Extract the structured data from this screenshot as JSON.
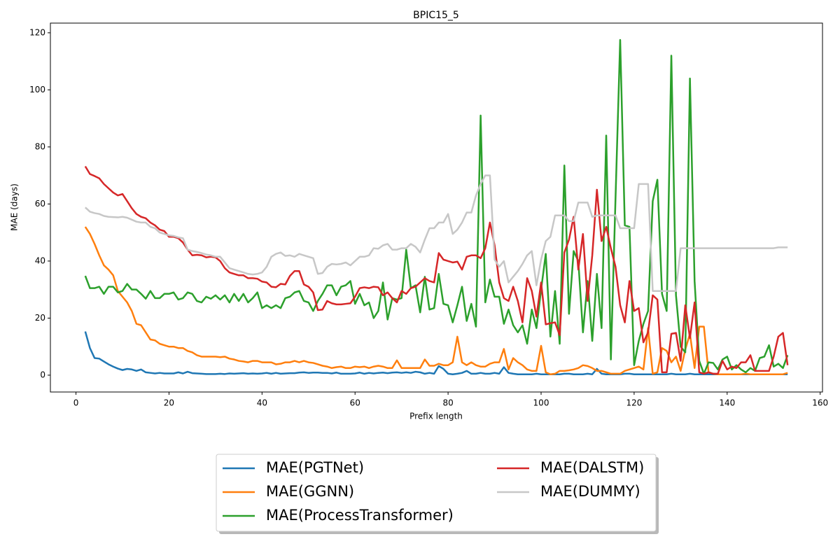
{
  "chart_data": {
    "type": "line",
    "title": "BPIC15_5",
    "xlabel": "Prefix length",
    "ylabel": "MAE (days)",
    "x": [
      2,
      3,
      4,
      5,
      6,
      7,
      8,
      9,
      10,
      11,
      12,
      13,
      14,
      15,
      16,
      17,
      18,
      19,
      20,
      21,
      22,
      23,
      24,
      25,
      26,
      27,
      28,
      29,
      30,
      31,
      32,
      33,
      34,
      35,
      36,
      37,
      38,
      39,
      40,
      41,
      42,
      43,
      44,
      45,
      46,
      47,
      48,
      49,
      50,
      51,
      52,
      53,
      54,
      55,
      56,
      57,
      58,
      59,
      60,
      61,
      62,
      63,
      64,
      65,
      66,
      67,
      68,
      69,
      70,
      71,
      72,
      73,
      74,
      75,
      76,
      77,
      78,
      79,
      80,
      81,
      82,
      83,
      84,
      85,
      86,
      87,
      88,
      89,
      90,
      91,
      92,
      93,
      94,
      95,
      96,
      97,
      98,
      99,
      100,
      101,
      102,
      103,
      104,
      105,
      106,
      107,
      108,
      109,
      110,
      111,
      112,
      113,
      114,
      115,
      116,
      117,
      118,
      119,
      120,
      121,
      122,
      123,
      124,
      125,
      126,
      127,
      128,
      129,
      130,
      131,
      132,
      133,
      134,
      135,
      136,
      137,
      138,
      139,
      140,
      141,
      142,
      143,
      144,
      145,
      146,
      147,
      148,
      149,
      150,
      151,
      152,
      153
    ],
    "series": [
      {
        "name": "MAE(PGTNet)",
        "color": "#1f77b4",
        "values": [
          15.3,
          9.5,
          6,
          5.8,
          4.8,
          3.8,
          3,
          2.3,
          1.8,
          2.2,
          2,
          1.5,
          2,
          1,
          0.8,
          0.6,
          0.8,
          0.6,
          0.6,
          0.6,
          1,
          0.6,
          1.2,
          0.7,
          0.6,
          0.5,
          0.4,
          0.4,
          0.4,
          0.5,
          0.4,
          0.6,
          0.5,
          0.6,
          0.7,
          0.5,
          0.6,
          0.5,
          0.6,
          0.8,
          0.5,
          0.8,
          0.5,
          0.6,
          0.7,
          0.7,
          0.9,
          1,
          0.8,
          0.9,
          0.9,
          0.8,
          0.8,
          0.6,
          0.9,
          0.5,
          0.5,
          0.5,
          0.6,
          0.9,
          0.5,
          0.8,
          0.6,
          0.8,
          0.9,
          0.7,
          0.9,
          1,
          0.8,
          1,
          0.8,
          1.2,
          1,
          0.5,
          0.8,
          0.5,
          3.2,
          2.2,
          0.5,
          0.3,
          0.5,
          0.8,
          1.5,
          0.5,
          0.5,
          0.8,
          0.5,
          0.5,
          0.8,
          0.5,
          2.8,
          0.8,
          0.5,
          0.3,
          0.3,
          0.3,
          0.3,
          0.5,
          0.3,
          0.3,
          0.3,
          0.3,
          0.3,
          0.5,
          0.5,
          0.3,
          0.3,
          0.3,
          0.5,
          0.3,
          2.2,
          0.5,
          0.3,
          0.3,
          0.3,
          0.3,
          0.5,
          0.5,
          0.3,
          0.3,
          0.3,
          0.3,
          0.3,
          0.3,
          0.3,
          0.3,
          0.5,
          0.3,
          0.3,
          0.3,
          0.5,
          0.3,
          0.3,
          0.3,
          0.3,
          0.3,
          0.3,
          0.3,
          0.3,
          0.3,
          0.3,
          0.3,
          0.3,
          0.3,
          0.3,
          0.3,
          0.3,
          0.3,
          0.3,
          0.3,
          0.3,
          0.3
        ]
      },
      {
        "name": "MAE(GGNN)",
        "color": "#ff7f0e",
        "values": [
          52,
          49.5,
          46,
          42,
          38.5,
          37,
          35,
          29.5,
          27.5,
          25.5,
          22.5,
          18,
          17.5,
          15,
          12.5,
          12.2,
          11,
          10.5,
          10,
          10,
          9.5,
          9.5,
          8.5,
          8,
          7,
          6.5,
          6.5,
          6.5,
          6.5,
          6.3,
          6.5,
          5.8,
          5.5,
          5,
          4.8,
          4.5,
          5,
          5,
          4.5,
          4.5,
          4.5,
          3.8,
          4,
          4.5,
          4.5,
          5,
          4.5,
          5,
          4.5,
          4.3,
          3.8,
          3.3,
          3,
          2.5,
          2.8,
          3,
          2.5,
          2.5,
          3,
          2.8,
          3,
          2.5,
          3,
          3.3,
          3,
          2.5,
          2.5,
          5.2,
          2.5,
          2.5,
          2.5,
          2.5,
          2.5,
          5.5,
          3.3,
          3.3,
          4,
          3.5,
          3.5,
          4.5,
          13.5,
          4.5,
          3.5,
          4.5,
          3.5,
          3,
          3,
          4,
          4.5,
          4.5,
          9.2,
          2,
          6,
          4.5,
          3.5,
          2,
          1.5,
          1.5,
          10.3,
          1,
          0.3,
          0.5,
          1.5,
          1.5,
          1.7,
          2,
          2.5,
          3.5,
          3.2,
          2.5,
          1.5,
          1.5,
          1,
          0.5,
          0.5,
          0.5,
          1.5,
          2,
          2.5,
          3,
          2,
          16.5,
          0.5,
          1,
          9.5,
          8.5,
          4.5,
          6.5,
          1.5,
          9,
          14.5,
          2.5,
          17,
          17,
          1,
          0.5,
          0.3,
          0.3,
          0.3,
          0.3,
          0.3,
          0.3,
          0.5,
          0.3,
          0.3,
          0.3,
          0.3,
          0.3,
          0.3,
          0.3,
          0.3,
          0.8
        ]
      },
      {
        "name": "MAE(ProcessTransformer)",
        "color": "#2ca02c",
        "values": [
          34.8,
          30.5,
          30.5,
          31,
          28.5,
          31,
          31,
          29,
          29.5,
          32,
          30,
          30,
          28.5,
          26.8,
          29.5,
          27,
          27,
          28.5,
          28.5,
          29,
          26.5,
          27,
          29,
          28.5,
          26,
          25.5,
          27.5,
          26.8,
          28,
          26.5,
          28,
          25.5,
          28.5,
          26,
          28.5,
          25.5,
          27,
          29,
          23.5,
          24.5,
          23.5,
          24.5,
          23.5,
          27,
          27.5,
          29,
          29.5,
          26,
          25.5,
          22.5,
          26,
          28.5,
          31.5,
          31.5,
          28,
          31,
          31.5,
          33,
          25,
          28.5,
          24.5,
          25.5,
          20,
          22.5,
          32.5,
          19.5,
          27,
          26.5,
          27,
          44,
          30.5,
          31.5,
          22,
          34.5,
          23,
          23.5,
          35.5,
          25,
          24.5,
          18.5,
          24.5,
          31,
          19,
          25,
          17,
          91,
          25.5,
          33.5,
          27.5,
          27.5,
          18,
          23,
          17.5,
          15,
          17.5,
          11,
          23,
          16.5,
          30,
          42.5,
          13.5,
          29.5,
          11,
          73.5,
          21.5,
          43.5,
          40,
          15,
          33,
          12,
          35.5,
          16.5,
          84,
          5.5,
          62,
          117.5,
          52.5,
          52,
          3.5,
          12,
          18,
          22.5,
          61,
          68.5,
          28.5,
          22.5,
          112,
          28,
          10,
          8,
          104,
          33,
          5,
          0.5,
          4.5,
          4.3,
          2,
          5.5,
          6.5,
          2,
          3.5,
          2,
          1,
          2.5,
          1.5,
          6,
          6.5,
          10.5,
          3,
          4,
          2.5,
          7
        ]
      },
      {
        "name": "MAE(DALSTM)",
        "color": "#d62728",
        "values": [
          73.2,
          70.5,
          69.8,
          69,
          67,
          65.5,
          64,
          63,
          63.5,
          61,
          58.5,
          56.5,
          55.5,
          55,
          53.5,
          52.5,
          51,
          50.5,
          48.5,
          48.5,
          48,
          46.5,
          44,
          42,
          42.2,
          42,
          41.3,
          41.5,
          41.3,
          40,
          37.5,
          36,
          35.5,
          35,
          35,
          34,
          34,
          33.8,
          32.8,
          32.5,
          31,
          30.8,
          32,
          31.8,
          34.8,
          36.5,
          36.5,
          31.8,
          31,
          29,
          22.8,
          23,
          26,
          25.2,
          24.8,
          24.8,
          25,
          25.2,
          27.5,
          30.5,
          30.8,
          30.5,
          31,
          30.8,
          28,
          29,
          27,
          25.5,
          29.5,
          28.5,
          30.5,
          31,
          32.5,
          34,
          33,
          32.5,
          42.8,
          40.5,
          40,
          39.5,
          39.8,
          37,
          41.5,
          42,
          42,
          41,
          44.5,
          53.5,
          45.5,
          32.5,
          27,
          26,
          31,
          26,
          18.5,
          34,
          29.5,
          20.5,
          32.5,
          17.8,
          18.2,
          18.5,
          14,
          43,
          47.5,
          55.5,
          37,
          49.5,
          26,
          42,
          65,
          47,
          52,
          44.5,
          38,
          24.5,
          18.5,
          33,
          22.5,
          23.5,
          11.5,
          15,
          28,
          26.5,
          1,
          1,
          14.5,
          14.8,
          5,
          24.5,
          13,
          25.5,
          1,
          0.5,
          1,
          0.5,
          0.5,
          5,
          2,
          3,
          2.5,
          4.5,
          4.5,
          7,
          1.5,
          1.5,
          1.5,
          1.5,
          6.5,
          13.5,
          14.8,
          3.5
        ]
      },
      {
        "name": "MAE(DUMMY)",
        "color": "#c7c7c7",
        "values": [
          58.8,
          57.3,
          56.8,
          56.5,
          55.8,
          55.5,
          55.4,
          55.3,
          55.5,
          55.2,
          54.5,
          53.8,
          53.5,
          53.5,
          52,
          51.5,
          50,
          49.5,
          49,
          48.8,
          48.3,
          48,
          44,
          43.5,
          43.2,
          42.8,
          42.3,
          42,
          41.5,
          41.5,
          39.5,
          37.5,
          37,
          36.5,
          36,
          35.5,
          35.3,
          35.5,
          36,
          38,
          41.5,
          42.5,
          43,
          41.8,
          42,
          41.5,
          42.5,
          42,
          41.5,
          41,
          35.5,
          35.8,
          38,
          39,
          38.8,
          39,
          39.5,
          38.5,
          40,
          41.5,
          41.5,
          42,
          44.5,
          44.3,
          45.5,
          46,
          44,
          44,
          44.5,
          44.5,
          46,
          45,
          43,
          47.5,
          51.5,
          51.5,
          53.5,
          53.5,
          56.5,
          49.5,
          51,
          53.5,
          57,
          57,
          63,
          67,
          70,
          70,
          40.5,
          38,
          40,
          32.5,
          34.5,
          36.5,
          39,
          42,
          43.5,
          31.5,
          40.5,
          47,
          48.5,
          56,
          56,
          56,
          54,
          54,
          60.5,
          60.5,
          60.5,
          55.5,
          56,
          56,
          56,
          56,
          56,
          51.5,
          51.5,
          51.5,
          51.5,
          67,
          67,
          67,
          29.5,
          29.5,
          29.5,
          29.5,
          29.5,
          29.5,
          44.5,
          44.5,
          44.5,
          44.5,
          44.5,
          44.5,
          44.5,
          44.5,
          44.5,
          44.5,
          44.5,
          44.5,
          44.5,
          44.5,
          44.5,
          44.5,
          44.5,
          44.5,
          44.5,
          44.5,
          44.5,
          44.8,
          44.8,
          44.8
        ]
      }
    ],
    "xlim": [
      -5.5,
      160.5
    ],
    "ylim": [
      -5.9,
      123.4
    ],
    "xticks": [
      0,
      20,
      40,
      60,
      80,
      100,
      120,
      140,
      160
    ],
    "yticks": [
      0,
      20,
      40,
      60,
      80,
      100,
      120
    ],
    "grid": false,
    "legend": "below"
  }
}
